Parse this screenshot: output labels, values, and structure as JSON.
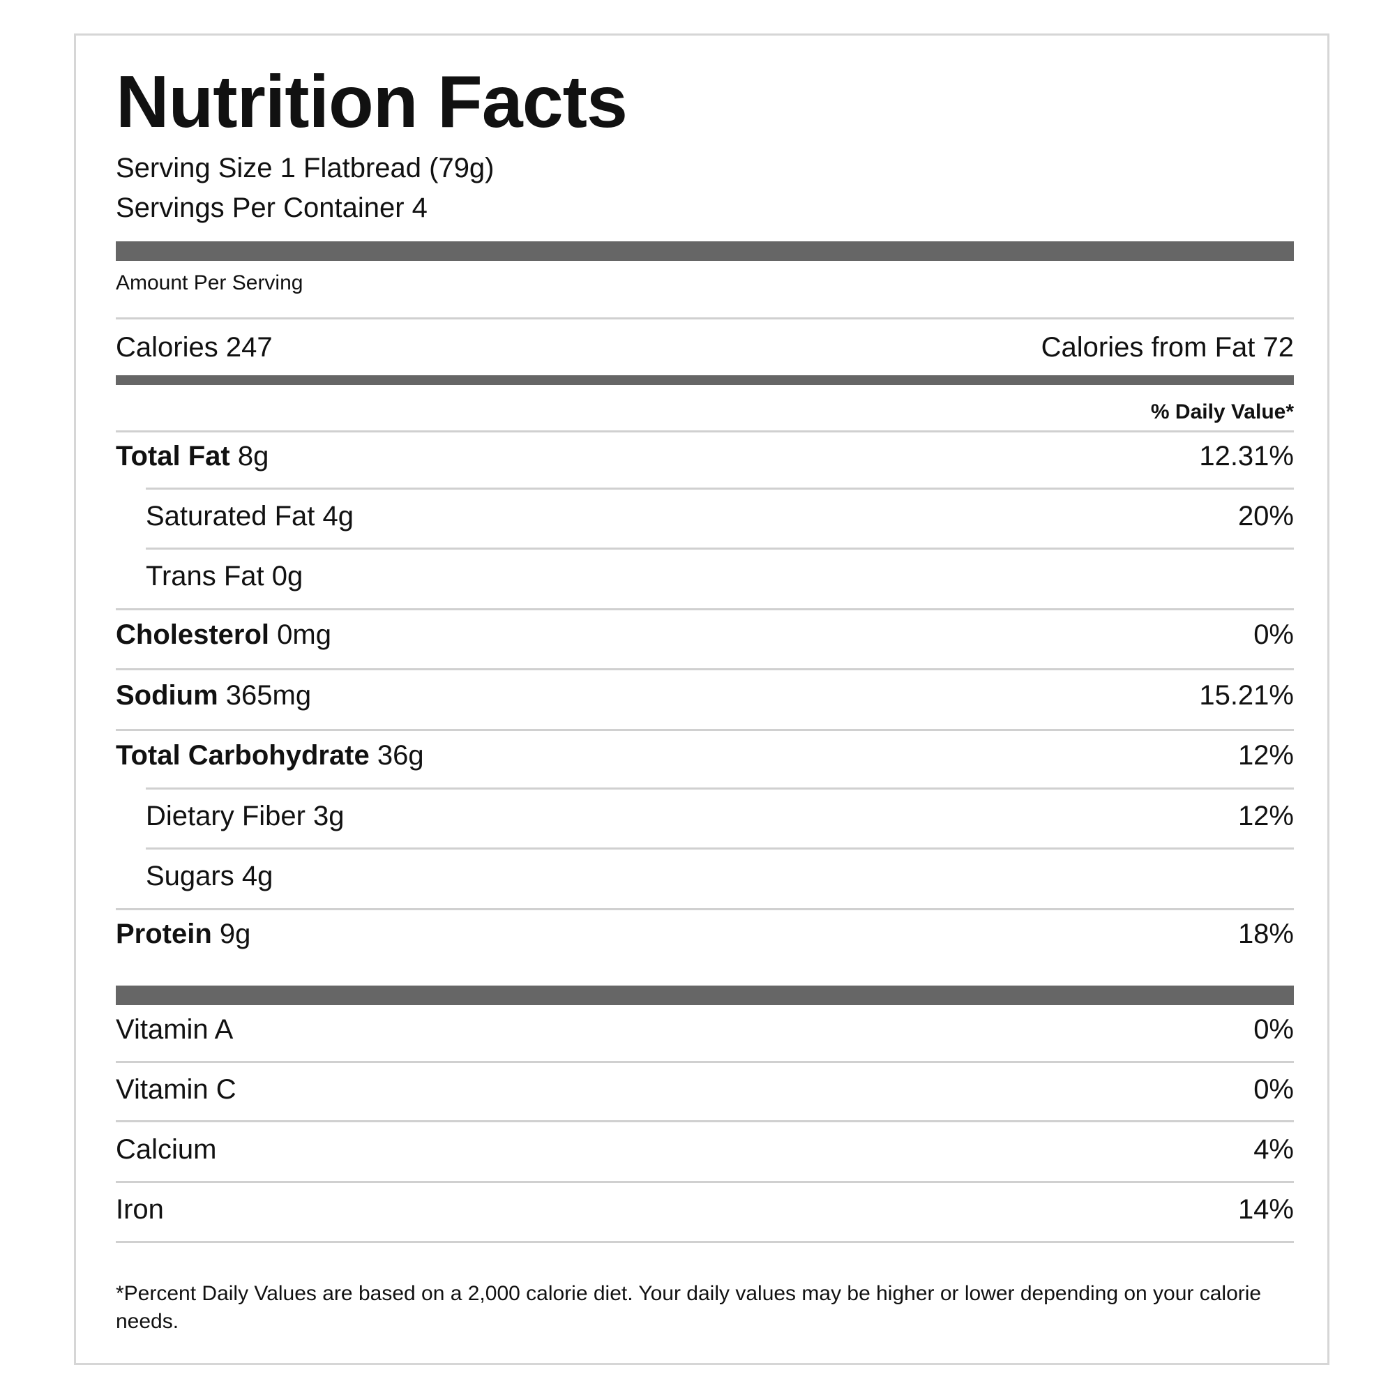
{
  "label": {
    "title": "Nutrition Facts",
    "serving_size": "Serving Size 1 Flatbread (79g)",
    "servings_per_container": "Servings Per Container 4",
    "amount_per_serving": "Amount Per Serving",
    "calories": "Calories 247",
    "calories_from_fat": "Calories from Fat 72",
    "daily_value_header": "% Daily Value*",
    "nutrients": [
      {
        "name": "Total Fat",
        "amount": " 8g",
        "pct": "12.31%"
      },
      {
        "name": "",
        "amount": "Saturated Fat 4g",
        "pct": "20%"
      },
      {
        "name": "",
        "amount": "Trans Fat 0g",
        "pct": ""
      },
      {
        "name": "Cholesterol",
        "amount": " 0mg",
        "pct": "0%"
      },
      {
        "name": "Sodium",
        "amount": " 365mg",
        "pct": "15.21%"
      },
      {
        "name": "Total Carbohydrate",
        "amount": " 36g",
        "pct": "12%"
      },
      {
        "name": "",
        "amount": "Dietary Fiber 3g",
        "pct": "12%"
      },
      {
        "name": "",
        "amount": "Sugars 4g",
        "pct": ""
      },
      {
        "name": "Protein",
        "amount": " 9g",
        "pct": "18%"
      }
    ],
    "vitamins": [
      {
        "name": "Vitamin A",
        "pct": "0%"
      },
      {
        "name": "Vitamin C",
        "pct": "0%"
      },
      {
        "name": "Calcium",
        "pct": "4%"
      },
      {
        "name": "Iron",
        "pct": "14%"
      }
    ],
    "footnote": "*Percent Daily Values are based on a 2,000 calorie diet. Your daily values may be higher or lower depending on your calorie needs."
  }
}
